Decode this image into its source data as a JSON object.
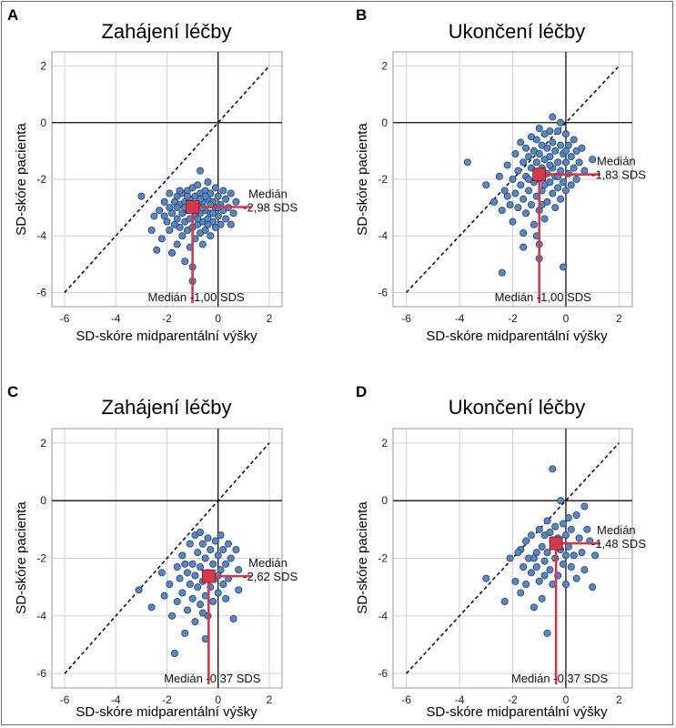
{
  "chart_data": [
    {
      "type": "scatter",
      "panel_letter": "A",
      "title": "Zahájení léčby",
      "xlabel": "SD-skóre midparentální výšky",
      "ylabel": "SD-skóre pacienta",
      "xlim": [
        -6.5,
        2.5
      ],
      "ylim": [
        -6.5,
        2.5
      ],
      "xticks": [
        -6,
        -4,
        -2,
        0,
        2
      ],
      "yticks": [
        -6,
        -4,
        -2,
        0,
        2
      ],
      "tick_labels": [
        "-6",
        "-4",
        "-2",
        "0",
        "2"
      ],
      "grid": true,
      "reference_line": "y = x (dashed)",
      "point_color": "#5b87c0",
      "median_color": "#d23a4c",
      "median": {
        "x": -1.0,
        "y": -2.98
      },
      "median_x_label": "Medián -1,00 SDS",
      "median_y_label": [
        "Medián",
        "-2,98 SDS"
      ],
      "points": [
        [
          -3.0,
          -2.6
        ],
        [
          -2.6,
          -3.8
        ],
        [
          -2.5,
          -3.3
        ],
        [
          -2.4,
          -4.5
        ],
        [
          -2.3,
          -3.1
        ],
        [
          -2.2,
          -4.1
        ],
        [
          -2.1,
          -2.8
        ],
        [
          -2.0,
          -3.5
        ],
        [
          -1.9,
          -2.5
        ],
        [
          -1.9,
          -3.8
        ],
        [
          -1.8,
          -3.2
        ],
        [
          -1.8,
          -4.6
        ],
        [
          -1.7,
          -2.8
        ],
        [
          -1.7,
          -3.6
        ],
        [
          -1.6,
          -2.6
        ],
        [
          -1.6,
          -3.4
        ],
        [
          -1.6,
          -4.3
        ],
        [
          -1.5,
          -2.9
        ],
        [
          -1.5,
          -3.7
        ],
        [
          -1.4,
          -2.5
        ],
        [
          -1.4,
          -3.2
        ],
        [
          -1.4,
          -4.0
        ],
        [
          -1.3,
          -2.8
        ],
        [
          -1.3,
          -3.5
        ],
        [
          -1.3,
          -4.9
        ],
        [
          -1.2,
          -2.4
        ],
        [
          -1.2,
          -3.1
        ],
        [
          -1.2,
          -3.8
        ],
        [
          -1.1,
          -2.7
        ],
        [
          -1.1,
          -3.4
        ],
        [
          -1.1,
          -4.4
        ],
        [
          -1.0,
          -2.3
        ],
        [
          -1.0,
          -3.0
        ],
        [
          -1.0,
          -3.7
        ],
        [
          -1.0,
          -5.1
        ],
        [
          -1.0,
          -5.6
        ],
        [
          -0.9,
          -2.6
        ],
        [
          -0.9,
          -3.3
        ],
        [
          -0.9,
          -4.1
        ],
        [
          -0.8,
          -2.2
        ],
        [
          -0.8,
          -2.9
        ],
        [
          -0.8,
          -3.6
        ],
        [
          -0.7,
          -1.7
        ],
        [
          -0.7,
          -2.5
        ],
        [
          -0.7,
          -3.2
        ],
        [
          -0.7,
          -3.9
        ],
        [
          -0.6,
          -2.8
        ],
        [
          -0.6,
          -3.5
        ],
        [
          -0.6,
          -4.3
        ],
        [
          -0.5,
          -2.4
        ],
        [
          -0.5,
          -3.1
        ],
        [
          -0.5,
          -3.8
        ],
        [
          -0.4,
          -2.1
        ],
        [
          -0.4,
          -2.7
        ],
        [
          -0.4,
          -3.4
        ],
        [
          -0.3,
          -2.5
        ],
        [
          -0.3,
          -3.2
        ],
        [
          -0.3,
          -4.0
        ],
        [
          -0.2,
          -2.8
        ],
        [
          -0.2,
          -3.5
        ],
        [
          -0.1,
          -2.3
        ],
        [
          -0.1,
          -3.0
        ],
        [
          -0.1,
          -3.7
        ],
        [
          0.0,
          -2.6
        ],
        [
          0.0,
          -3.3
        ],
        [
          0.1,
          -2.9
        ],
        [
          0.1,
          -3.6
        ],
        [
          0.2,
          -2.4
        ],
        [
          0.2,
          -3.1
        ],
        [
          0.3,
          -2.7
        ],
        [
          0.3,
          -3.4
        ],
        [
          0.4,
          -3.0
        ],
        [
          0.5,
          -2.5
        ],
        [
          0.5,
          -3.6
        ],
        [
          0.6,
          -3.2
        ],
        [
          0.7,
          -2.8
        ],
        [
          -1.6,
          -3.0
        ],
        [
          -1.5,
          -2.4
        ],
        [
          -1.3,
          -3.0
        ],
        [
          -1.2,
          -2.6
        ],
        [
          -0.9,
          -2.9
        ],
        [
          -0.8,
          -3.4
        ],
        [
          -0.6,
          -3.0
        ],
        [
          -0.5,
          -2.6
        ],
        [
          -0.3,
          -2.9
        ],
        [
          -0.2,
          -3.2
        ],
        [
          0.0,
          -3.0
        ],
        [
          -1.9,
          -3.0
        ],
        [
          -2.1,
          -3.3
        ],
        [
          -0.4,
          -3.6
        ],
        [
          -1.1,
          -3.0
        ],
        [
          -0.7,
          -2.7
        ]
      ]
    },
    {
      "type": "scatter",
      "panel_letter": "B",
      "title": "Ukončení léčby",
      "xlabel": "SD-skóre midparentální výšky",
      "ylabel": "SD-skóre pacienta",
      "xlim": [
        -6.5,
        2.5
      ],
      "ylim": [
        -6.5,
        2.5
      ],
      "xticks": [
        -6,
        -4,
        -2,
        0,
        2
      ],
      "yticks": [
        -6,
        -4,
        -2,
        0,
        2
      ],
      "tick_labels": [
        "-6",
        "-4",
        "-2",
        "0",
        "2"
      ],
      "grid": true,
      "reference_line": "y = x (dashed)",
      "point_color": "#5b87c0",
      "median_color": "#d23a4c",
      "median": {
        "x": -1.0,
        "y": -1.83
      },
      "median_x_label": "Medián -1,00 SDS",
      "median_y_label": [
        "Medián",
        "-1,83 SDS"
      ],
      "points": [
        [
          -3.7,
          -1.4
        ],
        [
          -3.0,
          -2.2
        ],
        [
          -2.7,
          -2.8
        ],
        [
          -2.5,
          -1.9
        ],
        [
          -2.4,
          -3.1
        ],
        [
          -2.3,
          -2.4
        ],
        [
          -2.2,
          -1.5
        ],
        [
          -2.1,
          -2.9
        ],
        [
          -2.0,
          -2.0
        ],
        [
          -2.0,
          -3.5
        ],
        [
          -1.9,
          -1.1
        ],
        [
          -1.9,
          -2.5
        ],
        [
          -1.8,
          -1.7
        ],
        [
          -1.8,
          -3.0
        ],
        [
          -1.7,
          -0.7
        ],
        [
          -1.7,
          -2.2
        ],
        [
          -1.6,
          -1.4
        ],
        [
          -1.6,
          -2.7
        ],
        [
          -1.6,
          -3.9
        ],
        [
          -1.5,
          -0.9
        ],
        [
          -1.5,
          -1.9
        ],
        [
          -1.5,
          -3.2
        ],
        [
          -1.4,
          -1.2
        ],
        [
          -1.4,
          -2.4
        ],
        [
          -1.3,
          -0.5
        ],
        [
          -1.3,
          -1.6
        ],
        [
          -1.3,
          -2.9
        ],
        [
          -1.2,
          -1.0
        ],
        [
          -1.2,
          -2.1
        ],
        [
          -1.2,
          -3.6
        ],
        [
          -1.1,
          -0.6
        ],
        [
          -1.1,
          -1.4
        ],
        [
          -1.1,
          -2.6
        ],
        [
          -1.0,
          -0.2
        ],
        [
          -1.0,
          -1.1
        ],
        [
          -1.0,
          -2.0
        ],
        [
          -1.0,
          -3.1
        ],
        [
          -1.0,
          -4.3
        ],
        [
          -1.0,
          -4.8
        ],
        [
          -0.9,
          -0.8
        ],
        [
          -0.9,
          -1.6
        ],
        [
          -0.9,
          -2.4
        ],
        [
          -0.8,
          -0.4
        ],
        [
          -0.8,
          -1.3
        ],
        [
          -0.8,
          -2.2
        ],
        [
          -0.8,
          -3.4
        ],
        [
          -0.7,
          -0.9
        ],
        [
          -0.7,
          -1.8
        ],
        [
          -0.7,
          -2.8
        ],
        [
          -0.6,
          -0.3
        ],
        [
          -0.6,
          -1.2
        ],
        [
          -0.6,
          -2.1
        ],
        [
          -0.5,
          0.2
        ],
        [
          -0.5,
          -0.7
        ],
        [
          -0.5,
          -1.6
        ],
        [
          -0.5,
          -2.5
        ],
        [
          -0.4,
          -1.0
        ],
        [
          -0.4,
          -1.9
        ],
        [
          -0.4,
          -3.0
        ],
        [
          -0.3,
          -0.3
        ],
        [
          -0.3,
          -1.4
        ],
        [
          -0.3,
          -2.3
        ],
        [
          -0.2,
          0.0
        ],
        [
          -0.2,
          -0.8
        ],
        [
          -0.2,
          -1.7
        ],
        [
          -0.2,
          -2.7
        ],
        [
          -0.1,
          -1.1
        ],
        [
          -0.1,
          -2.1
        ],
        [
          0.0,
          -0.4
        ],
        [
          0.0,
          -1.4
        ],
        [
          0.0,
          -2.4
        ],
        [
          0.1,
          -0.8
        ],
        [
          0.1,
          -1.8
        ],
        [
          0.2,
          -1.2
        ],
        [
          0.2,
          -2.2
        ],
        [
          0.3,
          -0.6
        ],
        [
          0.3,
          -1.6
        ],
        [
          0.4,
          -1.0
        ],
        [
          0.4,
          -2.0
        ],
        [
          0.5,
          -1.4
        ],
        [
          0.6,
          -0.9
        ],
        [
          0.7,
          -1.7
        ],
        [
          1.0,
          -1.3
        ],
        [
          -1.6,
          -4.4
        ],
        [
          -2.4,
          -5.3
        ],
        [
          -0.1,
          -5.1
        ],
        [
          -1.1,
          -4.0
        ],
        [
          -2.2,
          -2.6
        ],
        [
          -1.4,
          -2.0
        ],
        [
          -0.9,
          -2.9
        ],
        [
          -0.6,
          -1.5
        ],
        [
          -0.3,
          -1.9
        ],
        [
          0.0,
          -1.0
        ]
      ]
    },
    {
      "type": "scatter",
      "panel_letter": "C",
      "title": "Zahájení léčby",
      "xlabel": "SD-skóre midparentální výšky",
      "ylabel": "SD-skóre pacienta",
      "xlim": [
        -6.5,
        2.5
      ],
      "ylim": [
        -6.5,
        2.5
      ],
      "xticks": [
        -6,
        -4,
        -2,
        0,
        2
      ],
      "yticks": [
        -6,
        -4,
        -2,
        0,
        2
      ],
      "tick_labels": [
        "-6",
        "-4",
        "-2",
        "0",
        "2"
      ],
      "grid": true,
      "reference_line": "y = x (dashed)",
      "point_color": "#5b87c0",
      "median_color": "#d23a4c",
      "median": {
        "x": -0.37,
        "y": -2.62
      },
      "median_x_label": "Medián -0,37 SDS",
      "median_y_label": [
        "Medián",
        "-2,62 SDS"
      ],
      "points": [
        [
          -3.1,
          -3.1
        ],
        [
          -2.6,
          -3.7
        ],
        [
          -2.2,
          -2.5
        ],
        [
          -2.1,
          -3.3
        ],
        [
          -1.9,
          -2.9
        ],
        [
          -1.8,
          -4.0
        ],
        [
          -1.7,
          -5.3
        ],
        [
          -1.6,
          -2.3
        ],
        [
          -1.6,
          -3.5
        ],
        [
          -1.5,
          -2.7
        ],
        [
          -1.4,
          -1.9
        ],
        [
          -1.4,
          -3.2
        ],
        [
          -1.3,
          -4.6
        ],
        [
          -1.2,
          -2.5
        ],
        [
          -1.2,
          -3.8
        ],
        [
          -1.1,
          -1.5
        ],
        [
          -1.1,
          -2.9
        ],
        [
          -1.0,
          -2.2
        ],
        [
          -1.0,
          -3.4
        ],
        [
          -0.9,
          -1.2
        ],
        [
          -0.9,
          -2.6
        ],
        [
          -0.9,
          -4.2
        ],
        [
          -0.8,
          -1.8
        ],
        [
          -0.8,
          -3.0
        ],
        [
          -0.7,
          -1.1
        ],
        [
          -0.7,
          -2.3
        ],
        [
          -0.7,
          -3.6
        ],
        [
          -0.6,
          -1.5
        ],
        [
          -0.6,
          -2.8
        ],
        [
          -0.5,
          -2.0
        ],
        [
          -0.5,
          -3.3
        ],
        [
          -0.5,
          -4.8
        ],
        [
          -0.4,
          -1.3
        ],
        [
          -0.4,
          -2.5
        ],
        [
          -0.4,
          -4.0
        ],
        [
          -0.3,
          -1.7
        ],
        [
          -0.3,
          -3.0
        ],
        [
          -0.2,
          -2.2
        ],
        [
          -0.2,
          -3.5
        ],
        [
          -0.1,
          -1.4
        ],
        [
          -0.1,
          -2.7
        ],
        [
          0.0,
          -1.9
        ],
        [
          0.0,
          -3.2
        ],
        [
          0.1,
          -2.4
        ],
        [
          0.1,
          -1.2
        ],
        [
          0.2,
          -2.9
        ],
        [
          0.2,
          -1.7
        ],
        [
          0.3,
          -2.2
        ],
        [
          0.3,
          -3.4
        ],
        [
          0.4,
          -1.5
        ],
        [
          0.4,
          -2.7
        ],
        [
          0.5,
          -2.0
        ],
        [
          0.6,
          -4.1
        ],
        [
          0.7,
          -1.7
        ],
        [
          0.8,
          -2.4
        ],
        [
          0.8,
          -3.1
        ],
        [
          -1.3,
          -2.2
        ],
        [
          -0.6,
          -3.9
        ],
        [
          0.0,
          -2.6
        ]
      ]
    },
    {
      "type": "scatter",
      "panel_letter": "D",
      "title": "Ukončení léčby",
      "xlabel": "SD-skóre midparentální výšky",
      "ylabel": "SD-skóre pacienta",
      "xlim": [
        -6.5,
        2.5
      ],
      "ylim": [
        -6.5,
        2.5
      ],
      "xticks": [
        -6,
        -4,
        -2,
        0,
        2
      ],
      "yticks": [
        -6,
        -4,
        -2,
        0,
        2
      ],
      "tick_labels": [
        "-6",
        "-4",
        "-2",
        "0",
        "2"
      ],
      "grid": true,
      "reference_line": "y = x (dashed)",
      "point_color": "#5b87c0",
      "median_color": "#d23a4c",
      "median": {
        "x": -0.37,
        "y": -1.48
      },
      "median_x_label": "Medián -0,37 SDS",
      "median_y_label": [
        "Medián",
        "-1,48 SDS"
      ],
      "points": [
        [
          -3.0,
          -2.7
        ],
        [
          -2.3,
          -3.5
        ],
        [
          -2.1,
          -2.0
        ],
        [
          -1.9,
          -2.8
        ],
        [
          -1.7,
          -1.7
        ],
        [
          -1.7,
          -3.2
        ],
        [
          -1.6,
          -2.3
        ],
        [
          -1.5,
          -1.4
        ],
        [
          -1.5,
          -2.9
        ],
        [
          -1.4,
          -2.0
        ],
        [
          -1.3,
          -1.2
        ],
        [
          -1.3,
          -2.5
        ],
        [
          -1.2,
          -3.7
        ],
        [
          -1.1,
          -1.8
        ],
        [
          -1.1,
          -2.3
        ],
        [
          -1.0,
          -1.0
        ],
        [
          -1.0,
          -2.8
        ],
        [
          -0.9,
          -1.6
        ],
        [
          -0.9,
          -3.4
        ],
        [
          -0.8,
          -1.2
        ],
        [
          -0.8,
          -2.1
        ],
        [
          -0.7,
          -0.7
        ],
        [
          -0.7,
          -1.8
        ],
        [
          -0.7,
          -4.6
        ],
        [
          -0.6,
          -1.1
        ],
        [
          -0.6,
          -2.4
        ],
        [
          -0.5,
          1.1
        ],
        [
          -0.5,
          -1.4
        ],
        [
          -0.5,
          -2.9
        ],
        [
          -0.4,
          -0.9
        ],
        [
          -0.4,
          -2.0
        ],
        [
          -0.3,
          -1.3
        ],
        [
          -0.3,
          -2.6
        ],
        [
          -0.2,
          0.0
        ],
        [
          -0.2,
          -1.7
        ],
        [
          -0.1,
          -0.8
        ],
        [
          -0.1,
          -2.2
        ],
        [
          0.0,
          -1.2
        ],
        [
          0.0,
          -2.9
        ],
        [
          0.1,
          -0.6
        ],
        [
          0.1,
          -1.6
        ],
        [
          0.2,
          -2.3
        ],
        [
          0.2,
          -1.0
        ],
        [
          0.3,
          -1.9
        ],
        [
          0.4,
          -0.5
        ],
        [
          0.4,
          -2.7
        ],
        [
          0.5,
          -1.3
        ],
        [
          0.6,
          -1.8
        ],
        [
          0.7,
          -0.2
        ],
        [
          0.7,
          -2.4
        ],
        [
          0.8,
          -1.0
        ],
        [
          0.9,
          -1.4
        ],
        [
          1.0,
          -3.0
        ],
        [
          1.1,
          -1.9
        ],
        [
          -1.8,
          -1.8
        ],
        [
          -1.2,
          -2.0
        ],
        [
          -0.8,
          -2.6
        ],
        [
          0.0,
          -1.9
        ],
        [
          -0.4,
          -1.6
        ]
      ]
    }
  ]
}
